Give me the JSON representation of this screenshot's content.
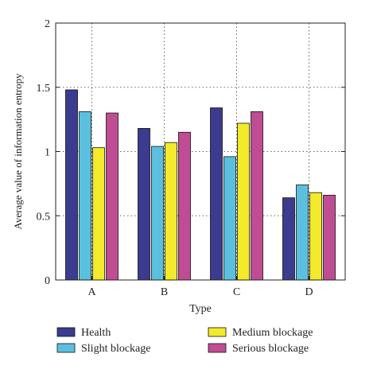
{
  "chart_data": {
    "type": "bar",
    "title": "",
    "xlabel": "Type",
    "ylabel": "Average value of information entropy",
    "categories": [
      "A",
      "B",
      "C",
      "D"
    ],
    "ylim": [
      0,
      2
    ],
    "yticks": [
      "0",
      "0.5",
      "1",
      "1.5",
      "2"
    ],
    "grid": true,
    "grid_style": "dotted",
    "legend_position": "bottom",
    "series": [
      {
        "name": "Health",
        "color": "#3b3b8f",
        "values": [
          1.48,
          1.18,
          1.34,
          0.64
        ]
      },
      {
        "name": "Slight blockage",
        "color": "#5bc0de",
        "values": [
          1.31,
          1.04,
          0.96,
          0.74
        ]
      },
      {
        "name": "Medium blockage",
        "color": "#f2ea2a",
        "values": [
          1.03,
          1.07,
          1.22,
          0.68
        ]
      },
      {
        "name": "Serious blockage",
        "color": "#c04c93",
        "values": [
          1.3,
          1.15,
          1.31,
          0.66
        ]
      }
    ]
  }
}
